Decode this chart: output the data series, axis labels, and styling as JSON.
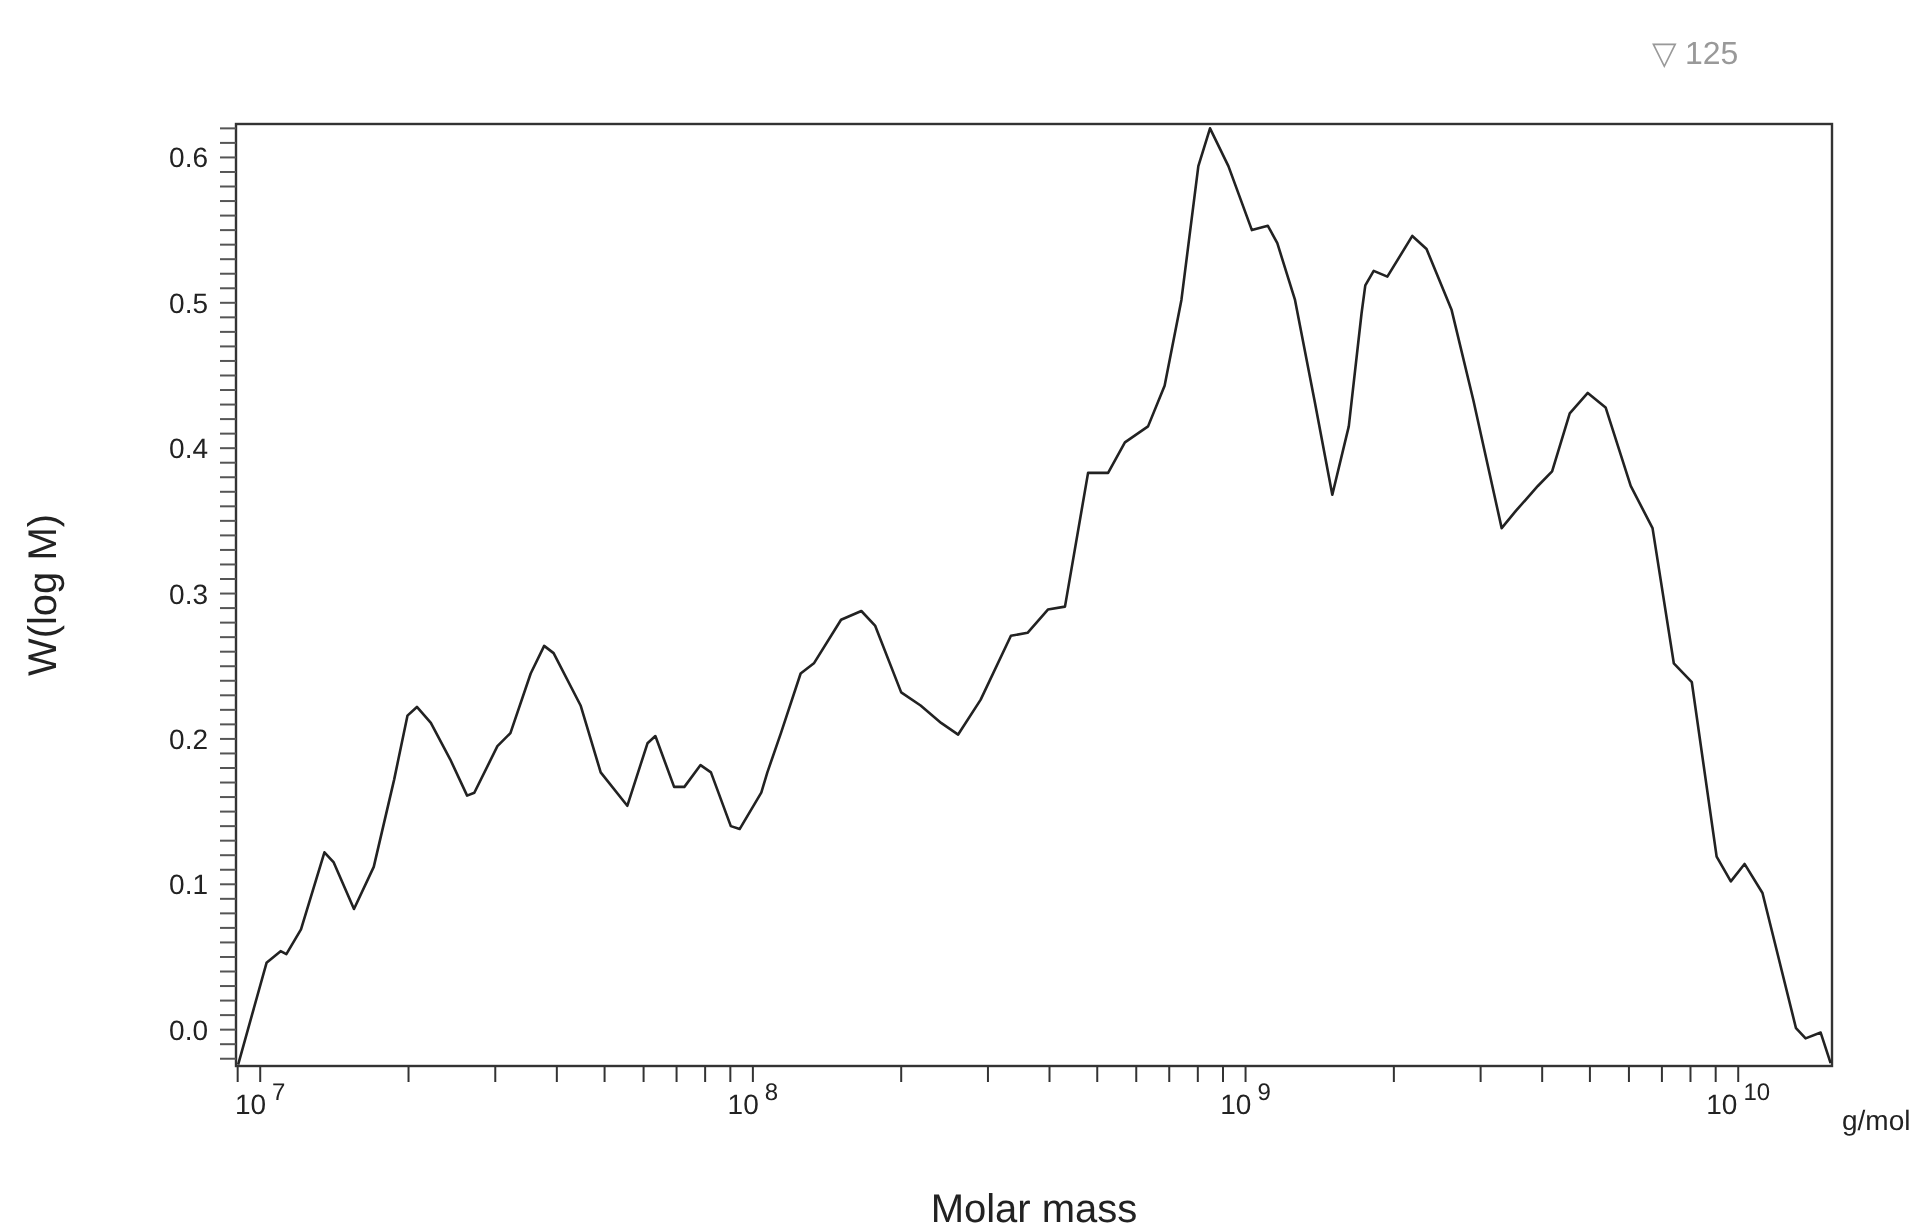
{
  "chart_data": {
    "type": "line",
    "xlabel": "Molar mass",
    "ylabel": "W(log M)",
    "annotations": [
      "g/mol",
      "▽ 125"
    ],
    "log": "x",
    "grid": false,
    "legend": false,
    "marker": "none",
    "line_style": "solid",
    "xlim": [
      8930000,
      15500000000
    ],
    "xticks": [
      {
        "value": 9000000,
        "label": null
      },
      {
        "value": 10000000,
        "label": "10$^{7}$"
      },
      {
        "value": 20000000,
        "label": null
      },
      {
        "value": 30000000,
        "label": null
      },
      {
        "value": 40000000,
        "label": null
      },
      {
        "value": 50000000,
        "label": null
      },
      {
        "value": 60000000,
        "label": null
      },
      {
        "value": 70000000,
        "label": null
      },
      {
        "value": 80000000,
        "label": null
      },
      {
        "value": 90000000,
        "label": null
      },
      {
        "value": 100000000,
        "label": "10$^{8}$"
      },
      {
        "value": 200000000,
        "label": null
      },
      {
        "value": 300000000,
        "label": null
      },
      {
        "value": 400000000,
        "label": null
      },
      {
        "value": 500000000,
        "label": null
      },
      {
        "value": 600000000,
        "label": null
      },
      {
        "value": 700000000,
        "label": null
      },
      {
        "value": 800000000,
        "label": null
      },
      {
        "value": 900000000,
        "label": null
      },
      {
        "value": 1000000000,
        "label": "10$^{9}$"
      },
      {
        "value": 2000000000,
        "label": null
      },
      {
        "value": 3000000000,
        "label": null
      },
      {
        "value": 4000000000,
        "label": null
      },
      {
        "value": 5000000000,
        "label": null
      },
      {
        "value": 6000000000,
        "label": null
      },
      {
        "value": 7000000000,
        "label": null
      },
      {
        "value": 8000000000,
        "label": null
      },
      {
        "value": 9000000000,
        "label": null
      },
      {
        "value": 10000000000,
        "label": "10$^{10}$"
      }
    ],
    "ylim": [
      -0.025,
      0.623
    ],
    "yticks": [
      {
        "value": -0.02,
        "label": null
      },
      {
        "value": -0.01,
        "label": null
      },
      {
        "value": 0,
        "label": "0.0"
      },
      {
        "value": 0.01,
        "label": null
      },
      {
        "value": 0.02,
        "label": null
      },
      {
        "value": 0.03,
        "label": null
      },
      {
        "value": 0.04,
        "label": null
      },
      {
        "value": 0.05,
        "label": null
      },
      {
        "value": 0.06,
        "label": null
      },
      {
        "value": 0.07,
        "label": null
      },
      {
        "value": 0.08,
        "label": null
      },
      {
        "value": 0.09,
        "label": null
      },
      {
        "value": 0.1,
        "label": "0.1"
      },
      {
        "value": 0.11,
        "label": null
      },
      {
        "value": 0.12,
        "label": null
      },
      {
        "value": 0.13,
        "label": null
      },
      {
        "value": 0.14,
        "label": null
      },
      {
        "value": 0.15,
        "label": null
      },
      {
        "value": 0.16,
        "label": null
      },
      {
        "value": 0.17,
        "label": null
      },
      {
        "value": 0.18,
        "label": null
      },
      {
        "value": 0.19,
        "label": null
      },
      {
        "value": 0.2,
        "label": "0.2"
      },
      {
        "value": 0.21,
        "label": null
      },
      {
        "value": 0.22,
        "label": null
      },
      {
        "value": 0.23,
        "label": null
      },
      {
        "value": 0.24,
        "label": null
      },
      {
        "value": 0.25,
        "label": null
      },
      {
        "value": 0.26,
        "label": null
      },
      {
        "value": 0.27,
        "label": null
      },
      {
        "value": 0.28,
        "label": null
      },
      {
        "value": 0.29,
        "label": null
      },
      {
        "value": 0.3,
        "label": "0.3"
      },
      {
        "value": 0.31,
        "label": null
      },
      {
        "value": 0.32,
        "label": null
      },
      {
        "value": 0.33,
        "label": null
      },
      {
        "value": 0.34,
        "label": null
      },
      {
        "value": 0.35,
        "label": null
      },
      {
        "value": 0.36,
        "label": null
      },
      {
        "value": 0.37,
        "label": null
      },
      {
        "value": 0.38,
        "label": null
      },
      {
        "value": 0.39,
        "label": null
      },
      {
        "value": 0.4,
        "label": "0.4"
      },
      {
        "value": 0.41,
        "label": null
      },
      {
        "value": 0.42,
        "label": null
      },
      {
        "value": 0.43,
        "label": null
      },
      {
        "value": 0.44,
        "label": null
      },
      {
        "value": 0.45,
        "label": null
      },
      {
        "value": 0.46,
        "label": null
      },
      {
        "value": 0.47,
        "label": null
      },
      {
        "value": 0.48,
        "label": null
      },
      {
        "value": 0.49,
        "label": null
      },
      {
        "value": 0.5,
        "label": "0.5"
      },
      {
        "value": 0.51,
        "label": null
      },
      {
        "value": 0.52,
        "label": null
      },
      {
        "value": 0.53,
        "label": null
      },
      {
        "value": 0.54,
        "label": null
      },
      {
        "value": 0.55,
        "label": null
      },
      {
        "value": 0.56,
        "label": null
      },
      {
        "value": 0.57,
        "label": null
      },
      {
        "value": 0.58,
        "label": null
      },
      {
        "value": 0.59,
        "label": null
      },
      {
        "value": 0.6,
        "label": "0.6"
      },
      {
        "value": 0.61,
        "label": null
      },
      {
        "value": 0.62,
        "label": null
      }
    ],
    "series": [
      {
        "color": "#222222",
        "x": [
          9020000,
          10300000,
          11000000,
          11300000,
          12100000,
          13500000,
          14100000,
          15500000,
          17000000,
          18700000,
          19900000,
          20800000,
          22200000,
          24300000,
          26300000,
          27200000,
          30300000,
          32200000,
          35400000,
          37700000,
          39400000,
          44700000,
          49100000,
          55600000,
          61100000,
          63400000,
          69200000,
          72600000,
          78300000,
          82200000,
          90200000,
          94000000,
          104000000,
          107000000,
          114000000,
          125000000,
          133000000,
          151000000,
          166000000,
          177000000,
          200000000,
          219000000,
          241000000,
          261000000,
          290000000,
          334000000,
          361000000,
          397000000,
          430000000,
          479000000,
          526000000,
          569000000,
          634000000,
          685000000,
          741000000,
          802000000,
          847000000,
          923000000,
          1030000000,
          1110000000,
          1160000000,
          1260000000,
          1380000000,
          1500000000,
          1620000000,
          1720000000,
          1750000000,
          1820000000,
          1940000000,
          2180000000,
          2330000000,
          2620000000,
          2900000000,
          3310000000,
          3540000000,
          3920000000,
          4190000000,
          4550000000,
          4950000000,
          5380000000,
          6050000000,
          6700000000,
          7400000000,
          8050000000,
          9040000000,
          9660000000,
          10300000000,
          11200000000,
          13100000000,
          13700000000,
          14700000000,
          15400000000
        ],
        "values": [
          -0.024,
          0.046,
          0.054,
          0.052,
          0.069,
          0.122,
          0.115,
          0.083,
          0.112,
          0.172,
          0.216,
          0.222,
          0.211,
          0.186,
          0.161,
          0.163,
          0.195,
          0.204,
          0.245,
          0.264,
          0.259,
          0.223,
          0.177,
          0.154,
          0.197,
          0.202,
          0.167,
          0.167,
          0.182,
          0.177,
          0.14,
          0.138,
          0.163,
          0.177,
          0.204,
          0.245,
          0.252,
          0.282,
          0.288,
          0.278,
          0.232,
          0.223,
          0.211,
          0.203,
          0.227,
          0.271,
          0.273,
          0.289,
          0.291,
          0.383,
          0.383,
          0.404,
          0.415,
          0.443,
          0.502,
          0.594,
          0.62,
          0.594,
          0.55,
          0.553,
          0.541,
          0.502,
          0.433,
          0.368,
          0.415,
          0.493,
          0.512,
          0.522,
          0.518,
          0.546,
          0.537,
          0.495,
          0.433,
          0.345,
          0.357,
          0.374,
          0.384,
          0.424,
          0.438,
          0.428,
          0.374,
          0.345,
          0.252,
          0.239,
          0.119,
          0.102,
          0.114,
          0.094,
          0.001,
          -0.006,
          -0.002,
          -0.023
        ]
      }
    ]
  }
}
